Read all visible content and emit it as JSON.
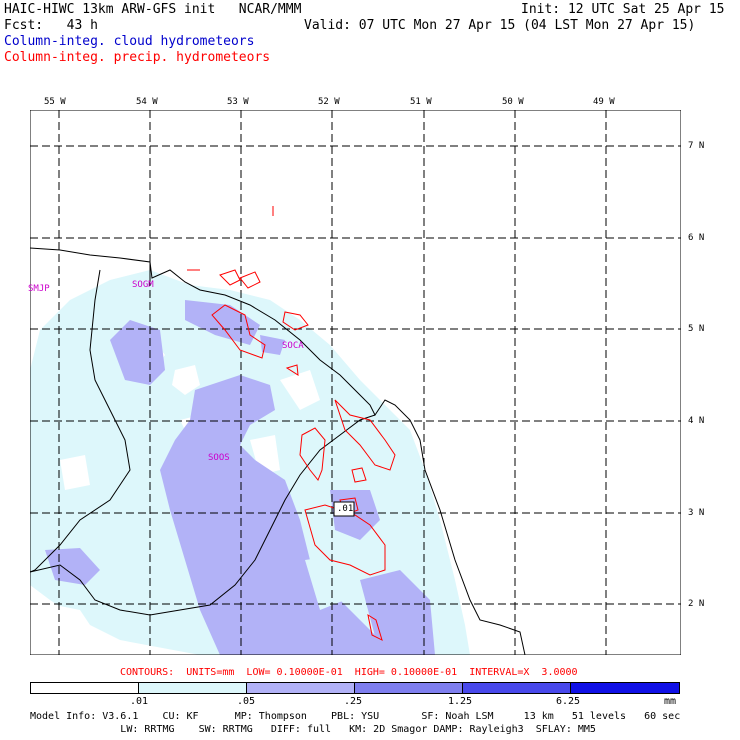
{
  "header": {
    "title_left": "HAIC-HIWC 13km ARW-GFS init   NCAR/MMM",
    "init": "Init: 12 UTC Sat 25 Apr 15",
    "fcst_label": "Fcst:   43 h",
    "valid": "Valid: 07 UTC Mon 27 Apr 15 (04 LST Mon 27 Apr 15)",
    "field_cloud": "Column-integ. cloud hydrometeors",
    "field_precip": "Column-integ. precip. hydrometeors",
    "cloud_color": "#0000cc",
    "precip_color": "#ff0000"
  },
  "map": {
    "lon_labels": [
      "55 W",
      "54 W",
      "53 W",
      "52 W",
      "51 W",
      "50 W",
      "49 W"
    ],
    "lat_labels": [
      "7 N",
      "6 N",
      "5 N",
      "4 N",
      "3 N",
      "2 N"
    ],
    "stations": [
      "SMJP",
      "SOGM",
      "SOCA",
      "SOOS"
    ],
    "contour_label": ".01"
  },
  "footer": {
    "contours": "CONTOURS:  UNITS=mm  LOW= 0.10000E-01  HIGH= 0.10000E-01  INTERVAL=X  3.0000",
    "colorbar_labels": [
      ".01",
      ".05",
      ".25",
      "1.25",
      "6.25",
      "mm"
    ],
    "colorbar_colors": [
      "#ffffff",
      "#ddf7fb",
      "#b2b2f7",
      "#7f7fef",
      "#4848eb",
      "#1010e6"
    ],
    "model_line1": "Model Info: V3.6.1    CU: KF      MP: Thompson    PBL: YSU       SF: Noah LSM     13 km   51 levels   60 sec",
    "model_line2": "               LW: RRTMG    SW: RRTMG   DIFF: full   KM: 2D Smagor DAMP: Rayleigh3  SFLAY: MM5"
  }
}
